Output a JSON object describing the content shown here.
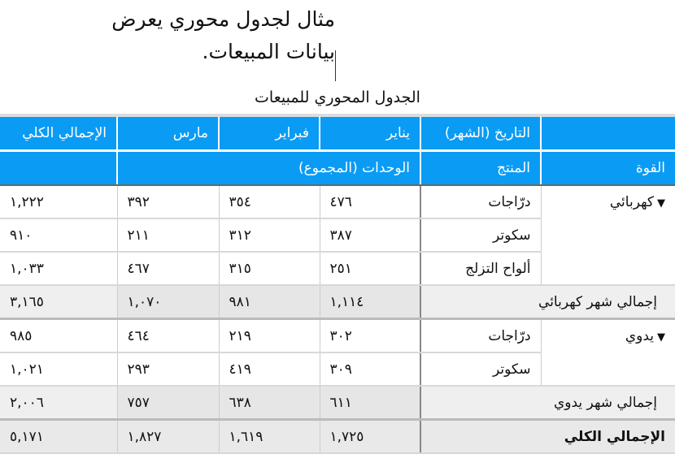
{
  "callout": {
    "line1": "مثال لجدول محوري يعرض",
    "line2": "بيانات المبيعات."
  },
  "table": {
    "title": "الجدول المحوري للمبيعات",
    "header1": {
      "date_label": "التاريخ (الشهر)",
      "months": [
        "يناير",
        "فبراير",
        "مارس"
      ],
      "total_label": "الإجمالي الكلي"
    },
    "header2": {
      "power_label": "القوة",
      "product_label": "المنتج",
      "units_label": "الوحدات (المجموع)"
    },
    "groups": [
      {
        "name": "كهربائي",
        "rows": [
          {
            "product": "درّاجات",
            "values": [
              "٤٧٦",
              "٣٥٤",
              "٣٩٢"
            ],
            "total": "١,٢٢٢"
          },
          {
            "product": "سكوتر",
            "values": [
              "٣٨٧",
              "٣١٢",
              "٢١١"
            ],
            "total": "٩١٠"
          },
          {
            "product": "ألواح التزلج",
            "values": [
              "٢٥١",
              "٣١٥",
              "٤٦٧"
            ],
            "total": "١,٠٣٣"
          }
        ],
        "subtotal": {
          "label": "إجمالي شهر كهربائي",
          "values": [
            "١,١١٤",
            "٩٨١",
            "١,٠٧٠"
          ],
          "total": "٣,١٦٥"
        }
      },
      {
        "name": "يدوي",
        "rows": [
          {
            "product": "درّاجات",
            "values": [
              "٣٠٢",
              "٢١٩",
              "٤٦٤"
            ],
            "total": "٩٨٥"
          },
          {
            "product": "سكوتر",
            "values": [
              "٣٠٩",
              "٤١٩",
              "٢٩٣"
            ],
            "total": "١,٠٢١"
          }
        ],
        "subtotal": {
          "label": "إجمالي شهر يدوي",
          "values": [
            "٦١١",
            "٦٣٨",
            "٧٥٧"
          ],
          "total": "٢,٠٠٦"
        }
      }
    ],
    "grand_total": {
      "label": "الإجمالي الكلي",
      "values": [
        "١,٧٢٥",
        "١,٦١٩",
        "١,٨٢٧"
      ],
      "total": "٥,١٧١"
    },
    "header_color": "#0a9bf5"
  }
}
